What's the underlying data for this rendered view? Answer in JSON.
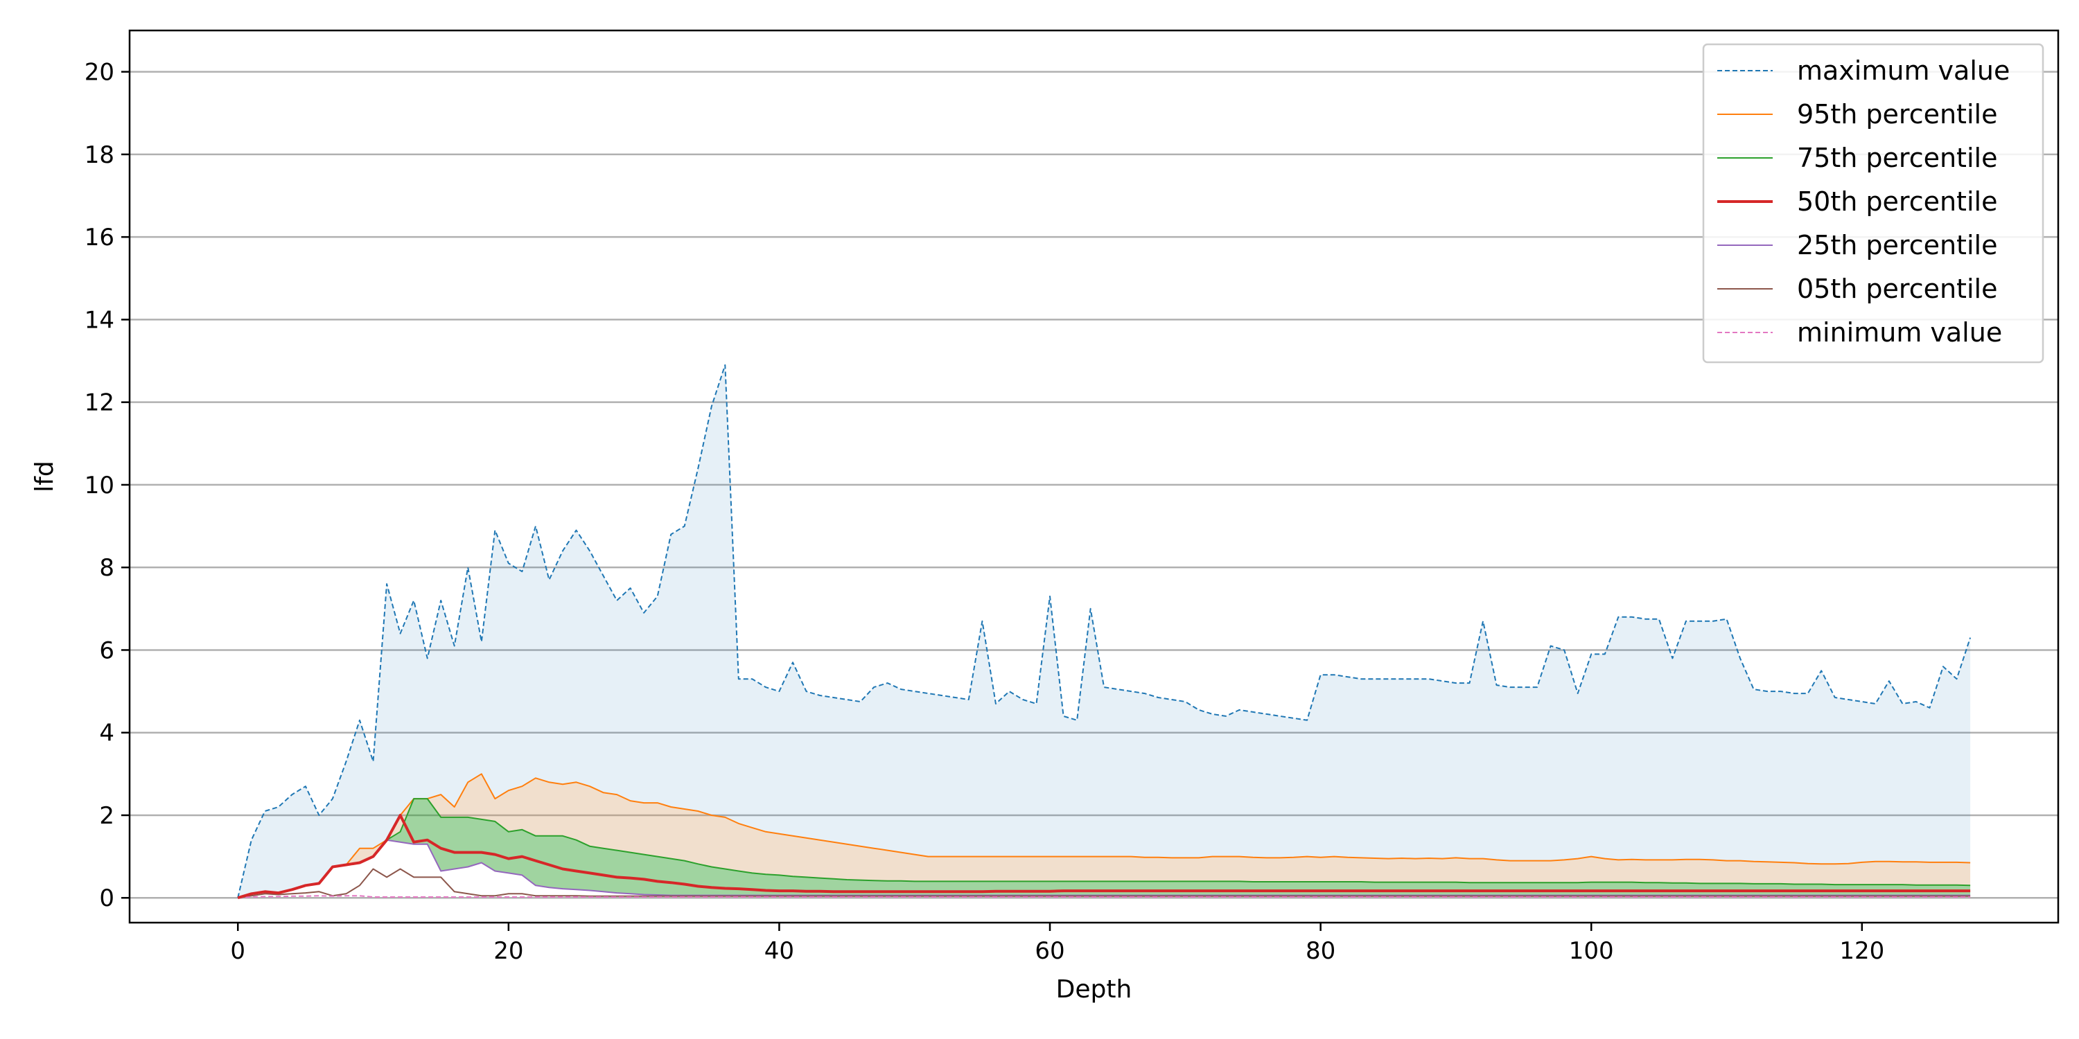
{
  "chart_data": {
    "type": "area",
    "title": "",
    "xlabel": "Depth",
    "ylabel": "lfd",
    "xlim": [
      -8,
      134.5
    ],
    "ylim": [
      -0.6,
      21
    ],
    "xticks": [
      0,
      20,
      40,
      60,
      80,
      100,
      120
    ],
    "yticks": [
      0,
      2,
      4,
      6,
      8,
      10,
      12,
      14,
      16,
      18,
      20
    ],
    "grid": "horizontal",
    "legend_position": "top-right",
    "x": [
      0,
      1,
      2,
      3,
      4,
      5,
      6,
      7,
      8,
      9,
      10,
      11,
      12,
      13,
      14,
      15,
      16,
      17,
      18,
      19,
      20,
      21,
      22,
      23,
      24,
      25,
      26,
      27,
      28,
      29,
      30,
      31,
      32,
      33,
      34,
      35,
      36,
      37,
      38,
      39,
      40,
      41,
      42,
      43,
      44,
      45,
      46,
      47,
      48,
      49,
      50,
      51,
      52,
      53,
      54,
      55,
      56,
      57,
      58,
      59,
      60,
      61,
      62,
      63,
      64,
      65,
      66,
      67,
      68,
      69,
      70,
      71,
      72,
      73,
      74,
      75,
      76,
      77,
      78,
      79,
      80,
      81,
      82,
      83,
      84,
      85,
      86,
      87,
      88,
      89,
      90,
      91,
      92,
      93,
      94,
      95,
      96,
      97,
      98,
      99,
      100,
      101,
      102,
      103,
      104,
      105,
      106,
      107,
      108,
      109,
      110,
      111,
      112,
      113,
      114,
      115,
      116,
      117,
      118,
      119,
      120,
      121,
      122,
      123,
      124,
      125,
      126,
      127,
      128
    ],
    "series": [
      {
        "name": "maximum value",
        "color": "#1f77b4",
        "dash": true,
        "fill": "rgba(31,119,180,0.11)",
        "values": [
          0.0,
          1.4,
          2.1,
          2.2,
          2.5,
          2.7,
          2.0,
          2.4,
          3.3,
          4.3,
          3.3,
          7.6,
          6.4,
          7.2,
          5.8,
          7.2,
          6.1,
          8.0,
          6.2,
          8.9,
          8.1,
          7.9,
          9.0,
          7.7,
          8.4,
          8.9,
          8.4,
          7.8,
          7.2,
          7.5,
          6.9,
          7.3,
          8.8,
          9.0,
          10.4,
          11.9,
          12.9,
          5.3,
          5.3,
          5.1,
          5.0,
          5.7,
          5.0,
          4.9,
          4.85,
          4.8,
          4.75,
          5.1,
          5.2,
          5.05,
          5.0,
          4.95,
          4.9,
          4.85,
          4.8,
          6.7,
          4.7,
          5.0,
          4.8,
          4.7,
          7.3,
          4.4,
          4.3,
          7.0,
          5.1,
          5.05,
          5.0,
          4.95,
          4.85,
          4.8,
          4.75,
          4.55,
          4.45,
          4.4,
          4.55,
          4.5,
          4.45,
          4.4,
          4.35,
          4.3,
          5.4,
          5.4,
          5.35,
          5.3,
          5.3,
          5.3,
          5.3,
          5.3,
          5.3,
          5.25,
          5.2,
          5.2,
          6.7,
          5.15,
          5.1,
          5.1,
          5.1,
          6.1,
          6.0,
          4.95,
          5.9,
          5.9,
          6.8,
          6.8,
          6.75,
          6.75,
          5.8,
          6.7,
          6.7,
          6.7,
          6.75,
          5.8,
          5.05,
          5.0,
          5.0,
          4.95,
          4.95,
          5.5,
          4.85,
          4.8,
          4.75,
          4.7,
          5.25,
          4.7,
          4.75,
          4.6,
          5.6,
          5.3,
          6.3
        ]
      },
      {
        "name": "95th percentile",
        "color": "#ff7f0e",
        "dash": false,
        "fill": "rgba(210,150,90,0.30)",
        "values": [
          0.0,
          0.1,
          0.15,
          0.12,
          0.2,
          0.3,
          0.35,
          0.75,
          0.8,
          1.2,
          1.2,
          1.4,
          2.0,
          2.4,
          2.4,
          2.5,
          2.2,
          2.8,
          3.0,
          2.4,
          2.6,
          2.7,
          2.9,
          2.8,
          2.75,
          2.8,
          2.7,
          2.55,
          2.5,
          2.35,
          2.3,
          2.3,
          2.2,
          2.15,
          2.1,
          2.0,
          1.95,
          1.8,
          1.7,
          1.6,
          1.55,
          1.5,
          1.45,
          1.4,
          1.35,
          1.3,
          1.25,
          1.2,
          1.15,
          1.1,
          1.05,
          1.0,
          1.0,
          1.0,
          1.0,
          1.0,
          1.0,
          1.0,
          1.0,
          1.0,
          1.0,
          1.0,
          1.0,
          1.0,
          1.0,
          1.0,
          1.0,
          0.98,
          0.98,
          0.97,
          0.97,
          0.97,
          1.0,
          1.0,
          1.0,
          0.98,
          0.97,
          0.97,
          0.98,
          1.0,
          0.98,
          1.0,
          0.98,
          0.97,
          0.96,
          0.95,
          0.96,
          0.95,
          0.96,
          0.95,
          0.97,
          0.95,
          0.95,
          0.92,
          0.9,
          0.9,
          0.9,
          0.9,
          0.92,
          0.95,
          1.0,
          0.95,
          0.92,
          0.93,
          0.92,
          0.92,
          0.92,
          0.93,
          0.93,
          0.92,
          0.9,
          0.9,
          0.88,
          0.87,
          0.86,
          0.85,
          0.83,
          0.82,
          0.82,
          0.83,
          0.86,
          0.88,
          0.88,
          0.87,
          0.87,
          0.86,
          0.86,
          0.86,
          0.85
        ]
      },
      {
        "name": "75th percentile",
        "color": "#2ca02c",
        "dash": false,
        "fill": "rgba(44,160,44,0.45)",
        "values": [
          0.0,
          0.1,
          0.15,
          0.12,
          0.2,
          0.3,
          0.35,
          0.75,
          0.8,
          0.85,
          1.0,
          1.4,
          1.6,
          2.4,
          2.4,
          1.95,
          1.95,
          1.95,
          1.9,
          1.85,
          1.6,
          1.65,
          1.5,
          1.5,
          1.5,
          1.4,
          1.25,
          1.2,
          1.15,
          1.1,
          1.05,
          1.0,
          0.95,
          0.9,
          0.82,
          0.75,
          0.7,
          0.65,
          0.6,
          0.57,
          0.55,
          0.52,
          0.5,
          0.48,
          0.46,
          0.44,
          0.43,
          0.42,
          0.41,
          0.41,
          0.4,
          0.4,
          0.4,
          0.4,
          0.4,
          0.4,
          0.4,
          0.4,
          0.4,
          0.4,
          0.4,
          0.4,
          0.4,
          0.4,
          0.4,
          0.4,
          0.4,
          0.4,
          0.4,
          0.4,
          0.4,
          0.4,
          0.4,
          0.4,
          0.4,
          0.39,
          0.39,
          0.39,
          0.39,
          0.39,
          0.39,
          0.39,
          0.39,
          0.39,
          0.38,
          0.38,
          0.38,
          0.38,
          0.38,
          0.38,
          0.38,
          0.37,
          0.37,
          0.37,
          0.37,
          0.37,
          0.37,
          0.37,
          0.37,
          0.37,
          0.38,
          0.38,
          0.38,
          0.38,
          0.37,
          0.37,
          0.36,
          0.36,
          0.35,
          0.35,
          0.35,
          0.35,
          0.34,
          0.34,
          0.34,
          0.33,
          0.33,
          0.33,
          0.32,
          0.32,
          0.32,
          0.32,
          0.32,
          0.32,
          0.31,
          0.31,
          0.31,
          0.31,
          0.3
        ]
      },
      {
        "name": "50th percentile",
        "color": "#d62728",
        "dash": false,
        "fill": null,
        "values": [
          0.0,
          0.1,
          0.15,
          0.12,
          0.2,
          0.3,
          0.35,
          0.75,
          0.8,
          0.85,
          1.0,
          1.4,
          2.0,
          1.35,
          1.4,
          1.2,
          1.1,
          1.1,
          1.1,
          1.05,
          0.95,
          1.0,
          0.9,
          0.8,
          0.7,
          0.65,
          0.6,
          0.55,
          0.5,
          0.48,
          0.45,
          0.4,
          0.37,
          0.33,
          0.28,
          0.25,
          0.23,
          0.22,
          0.2,
          0.18,
          0.17,
          0.17,
          0.16,
          0.16,
          0.15,
          0.15,
          0.15,
          0.15,
          0.15,
          0.15,
          0.15,
          0.15,
          0.15,
          0.15,
          0.15,
          0.15,
          0.16,
          0.16,
          0.16,
          0.16,
          0.16,
          0.17,
          0.17,
          0.17,
          0.17,
          0.17,
          0.17,
          0.17,
          0.17,
          0.17,
          0.17,
          0.17,
          0.17,
          0.17,
          0.17,
          0.17,
          0.17,
          0.17,
          0.17,
          0.17,
          0.17,
          0.17,
          0.17,
          0.17,
          0.17,
          0.17,
          0.17,
          0.17,
          0.17,
          0.17,
          0.17,
          0.17,
          0.17,
          0.17,
          0.17,
          0.17,
          0.17,
          0.17,
          0.17,
          0.17,
          0.17,
          0.17,
          0.17,
          0.17,
          0.17,
          0.17,
          0.17,
          0.17,
          0.17,
          0.17,
          0.17,
          0.17,
          0.17,
          0.17,
          0.17,
          0.17,
          0.17,
          0.17,
          0.17,
          0.17,
          0.17,
          0.17,
          0.17,
          0.17,
          0.17,
          0.17,
          0.17,
          0.17,
          0.17
        ]
      },
      {
        "name": "25th percentile",
        "color": "#9467bd",
        "dash": false,
        "fill": null,
        "values": [
          0.0,
          0.1,
          0.15,
          0.12,
          0.2,
          0.3,
          0.35,
          0.75,
          0.8,
          0.85,
          1.0,
          1.4,
          1.35,
          1.3,
          1.3,
          0.65,
          0.7,
          0.75,
          0.85,
          0.65,
          0.6,
          0.55,
          0.3,
          0.25,
          0.22,
          0.2,
          0.18,
          0.15,
          0.12,
          0.1,
          0.08,
          0.07,
          0.06,
          0.06,
          0.06,
          0.06,
          0.06,
          0.06,
          0.06,
          0.06,
          0.06,
          0.06,
          0.06,
          0.06,
          0.06,
          0.06,
          0.06,
          0.06,
          0.06,
          0.06,
          0.06,
          0.06,
          0.06,
          0.06,
          0.06,
          0.06,
          0.06,
          0.06,
          0.06,
          0.06,
          0.06,
          0.06,
          0.06,
          0.06,
          0.06,
          0.06,
          0.06,
          0.06,
          0.06,
          0.06,
          0.06,
          0.06,
          0.06,
          0.06,
          0.06,
          0.06,
          0.06,
          0.06,
          0.06,
          0.06,
          0.06,
          0.06,
          0.06,
          0.06,
          0.06,
          0.06,
          0.06,
          0.06,
          0.06,
          0.06,
          0.06,
          0.06,
          0.06,
          0.06,
          0.06,
          0.06,
          0.06,
          0.06,
          0.06,
          0.06,
          0.06,
          0.06,
          0.06,
          0.06,
          0.06,
          0.06,
          0.06,
          0.06,
          0.06,
          0.06,
          0.06,
          0.06,
          0.06,
          0.06,
          0.06,
          0.06,
          0.06,
          0.06,
          0.06,
          0.06,
          0.06,
          0.06,
          0.06,
          0.06,
          0.06,
          0.06,
          0.06,
          0.06,
          0.06
        ]
      },
      {
        "name": "05th percentile",
        "color": "#8c564b",
        "dash": false,
        "fill": null,
        "values": [
          0.0,
          0.05,
          0.1,
          0.08,
          0.1,
          0.12,
          0.15,
          0.05,
          0.1,
          0.3,
          0.7,
          0.5,
          0.7,
          0.5,
          0.5,
          0.5,
          0.15,
          0.1,
          0.05,
          0.05,
          0.1,
          0.1,
          0.05,
          0.05,
          0.05,
          0.05,
          0.04,
          0.04,
          0.04,
          0.04,
          0.04,
          0.04,
          0.04,
          0.04,
          0.04,
          0.04,
          0.04,
          0.04,
          0.04,
          0.04,
          0.04,
          0.04,
          0.04,
          0.04,
          0.04,
          0.04,
          0.04,
          0.04,
          0.04,
          0.04,
          0.04,
          0.04,
          0.04,
          0.04,
          0.04,
          0.04,
          0.04,
          0.04,
          0.04,
          0.04,
          0.04,
          0.04,
          0.04,
          0.04,
          0.04,
          0.04,
          0.04,
          0.04,
          0.04,
          0.04,
          0.04,
          0.04,
          0.04,
          0.04,
          0.04,
          0.04,
          0.04,
          0.04,
          0.04,
          0.04,
          0.04,
          0.04,
          0.04,
          0.04,
          0.04,
          0.04,
          0.04,
          0.04,
          0.04,
          0.04,
          0.04,
          0.04,
          0.04,
          0.04,
          0.04,
          0.04,
          0.04,
          0.04,
          0.04,
          0.04,
          0.04,
          0.04,
          0.04,
          0.04,
          0.04,
          0.04,
          0.04,
          0.04,
          0.04,
          0.04,
          0.04,
          0.04,
          0.04,
          0.04,
          0.04,
          0.04,
          0.04,
          0.04,
          0.04,
          0.04,
          0.04,
          0.04,
          0.04,
          0.04,
          0.04,
          0.04,
          0.04,
          0.04,
          0.04
        ]
      },
      {
        "name": "minimum value",
        "color": "#e377c2",
        "dash": true,
        "fill": null,
        "values": [
          0.0,
          0.02,
          0.03,
          0.03,
          0.04,
          0.04,
          0.05,
          0.04,
          0.05,
          0.05,
          0.02,
          0.02,
          0.02,
          0.02,
          0.02,
          0.02,
          0.02,
          0.02,
          0.02,
          0.02,
          0.02,
          0.02,
          0.02,
          0.02,
          0.02,
          0.02,
          0.02,
          0.02,
          0.02,
          0.02,
          0.02,
          0.02,
          0.02,
          0.02,
          0.02,
          0.02,
          0.02,
          0.02,
          0.02,
          0.02,
          0.02,
          0.02,
          0.02,
          0.02,
          0.02,
          0.02,
          0.02,
          0.02,
          0.02,
          0.02,
          0.02,
          0.02,
          0.02,
          0.02,
          0.02,
          0.02,
          0.02,
          0.02,
          0.02,
          0.02,
          0.02,
          0.02,
          0.02,
          0.02,
          0.02,
          0.02,
          0.02,
          0.02,
          0.02,
          0.02,
          0.02,
          0.02,
          0.02,
          0.02,
          0.02,
          0.02,
          0.02,
          0.02,
          0.02,
          0.02,
          0.02,
          0.02,
          0.02,
          0.02,
          0.02,
          0.02,
          0.02,
          0.02,
          0.02,
          0.02,
          0.02,
          0.02,
          0.02,
          0.02,
          0.02,
          0.02,
          0.02,
          0.02,
          0.02,
          0.02,
          0.02,
          0.02,
          0.02,
          0.02,
          0.02,
          0.02,
          0.02,
          0.02,
          0.02,
          0.02,
          0.02,
          0.02,
          0.02,
          0.02,
          0.02,
          0.02,
          0.02,
          0.02,
          0.02,
          0.02,
          0.02,
          0.02,
          0.02,
          0.02,
          0.02,
          0.02,
          0.02,
          0.02,
          0.02
        ]
      }
    ]
  }
}
